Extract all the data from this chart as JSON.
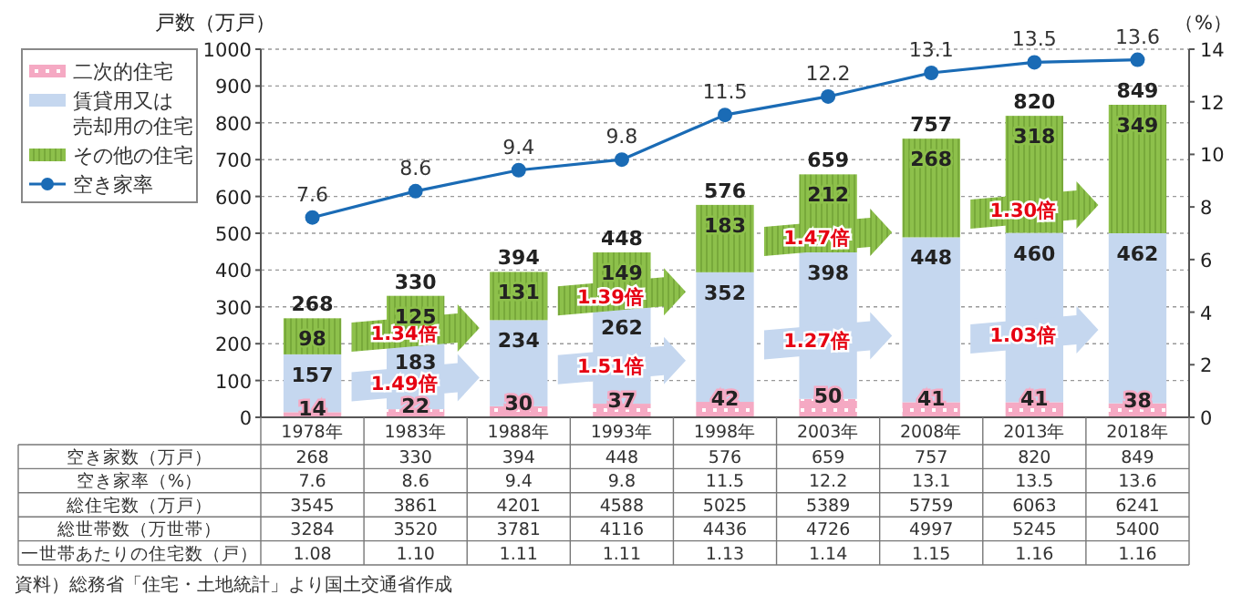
{
  "chart_data": {
    "type": "bar",
    "stacked": true,
    "categories": [
      "1978年",
      "1983年",
      "1988年",
      "1993年",
      "1998年",
      "2003年",
      "2008年",
      "2013年",
      "2018年"
    ],
    "series": [
      {
        "name": "二次的住宅",
        "color": "#f5a9c3",
        "values": [
          14,
          22,
          30,
          37,
          42,
          50,
          41,
          41,
          38
        ]
      },
      {
        "name": "賃貸用又は売却用の住宅",
        "color": "#c5d7ef",
        "values": [
          157,
          183,
          234,
          262,
          352,
          398,
          448,
          460,
          462
        ]
      },
      {
        "name": "その他の住宅",
        "color": "#8dc04b",
        "values": [
          98,
          125,
          131,
          149,
          183,
          212,
          268,
          318,
          349
        ]
      },
      {
        "name": "空き家率",
        "type": "line",
        "axis": "y2",
        "color": "#1a6bb5",
        "values": [
          7.6,
          8.6,
          9.4,
          9.8,
          11.5,
          12.2,
          13.1,
          13.5,
          13.6
        ],
        "value_labels": [
          "7.6",
          "8.6",
          "9.4",
          "9.8",
          "11.5",
          "12.2",
          "13.1",
          "13.5",
          "13.6"
        ]
      }
    ],
    "totals": [
      "268",
      "330",
      "394",
      "448",
      "576",
      "659",
      "757",
      "820",
      "849"
    ],
    "ylabel": "戸数（万戸）",
    "y2label": "（%）",
    "ylim": [
      0,
      1000
    ],
    "yticks": [
      0,
      100,
      200,
      300,
      400,
      500,
      600,
      700,
      800,
      900,
      1000
    ],
    "y2lim": [
      0,
      14
    ],
    "y2ticks": [
      0,
      2,
      4,
      6,
      8,
      10,
      12,
      14
    ],
    "grid": "y",
    "legend": "top left",
    "marker": "circle",
    "data_labels": true,
    "annotations": [
      "1.49倍",
      "1.51倍",
      "1.27倍",
      "1.03倍",
      "1.34倍",
      "1.39倍",
      "1.47倍",
      "1.30倍",
      "空き家数（万戸）",
      "空き家率（%）",
      "総住宅数（万戸）",
      "3545",
      "3861",
      "4201",
      "4588",
      "5025",
      "5389",
      "5759",
      "6063",
      "6241",
      "総世帯数（万世帯）",
      "3284",
      "3520",
      "3781",
      "4116",
      "4436",
      "4726",
      "4997",
      "5245",
      "5400",
      "一世帯あたりの住宅数（戸）",
      "1.08",
      "1.10",
      "1.11",
      "1.11",
      "1.13",
      "1.14",
      "1.15",
      "1.16",
      "1.16",
      "資料）総務省「住宅・土地統計」より国土交通省作成"
    ]
  }
}
